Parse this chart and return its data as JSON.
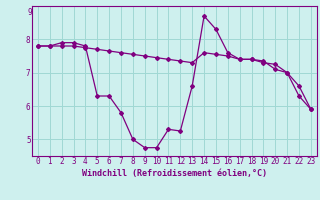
{
  "line1_x": [
    0,
    1,
    2,
    3,
    4,
    5,
    6,
    7,
    8,
    9,
    10,
    11,
    12,
    13,
    14,
    15,
    16,
    17,
    18,
    19,
    20,
    21,
    22,
    23
  ],
  "line1_y": [
    7.8,
    7.8,
    7.9,
    7.9,
    7.8,
    6.3,
    6.3,
    5.8,
    5.0,
    4.75,
    4.75,
    5.3,
    5.25,
    6.6,
    8.7,
    8.3,
    7.6,
    7.4,
    7.4,
    7.35,
    7.1,
    7.0,
    6.3,
    5.9
  ],
  "line2_x": [
    0,
    1,
    2,
    3,
    4,
    5,
    6,
    7,
    8,
    9,
    10,
    11,
    12,
    13,
    14,
    15,
    16,
    17,
    18,
    19,
    20,
    21,
    22,
    23
  ],
  "line2_y": [
    7.8,
    7.8,
    7.8,
    7.8,
    7.75,
    7.7,
    7.65,
    7.6,
    7.55,
    7.5,
    7.45,
    7.4,
    7.35,
    7.3,
    7.6,
    7.55,
    7.5,
    7.4,
    7.4,
    7.3,
    7.25,
    7.0,
    6.6,
    5.9
  ],
  "line_color": "#800080",
  "bg_color": "#cef0ee",
  "grid_color": "#a0d8d4",
  "axis_color": "#800080",
  "xlabel": "Windchill (Refroidissement éolien,°C)",
  "ylim": [
    4.5,
    9.0
  ],
  "xlim": [
    -0.5,
    23.5
  ],
  "yticks": [
    5,
    6,
    7,
    8
  ],
  "xticks": [
    0,
    1,
    2,
    3,
    4,
    5,
    6,
    7,
    8,
    9,
    10,
    11,
    12,
    13,
    14,
    15,
    16,
    17,
    18,
    19,
    20,
    21,
    22,
    23
  ],
  "tick_fontsize": 5.5,
  "label_fontsize": 6.0,
  "top_label": "9"
}
